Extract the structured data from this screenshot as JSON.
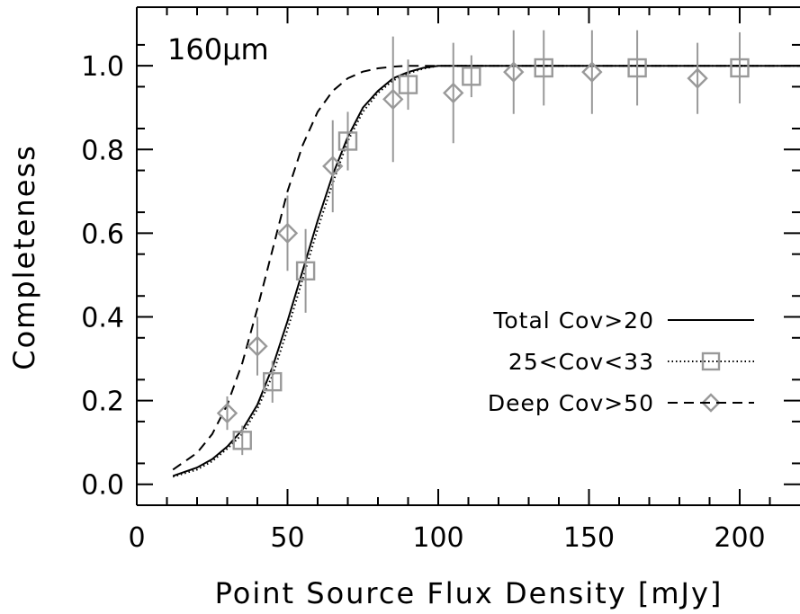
{
  "chart_data": {
    "type": "line",
    "annotation": "160μm",
    "xlabel": "Point Source Flux Density [mJy]",
    "ylabel": "Completeness",
    "xlim": [
      0,
      220
    ],
    "ylim": [
      -0.05,
      1.14
    ],
    "xticks": [
      0,
      50,
      100,
      150,
      200
    ],
    "yticks": [
      0.0,
      0.2,
      0.4,
      0.6,
      0.8,
      1.0
    ],
    "ytick_labels": [
      "0.0",
      "0.2",
      "0.4",
      "0.6",
      "0.8",
      "1.0"
    ],
    "legend_position": "middle-right",
    "colors": {
      "axes": "#000000",
      "markers": "#999999"
    },
    "series": [
      {
        "name": "Total Cov>20",
        "style": "solid",
        "marker": "none",
        "x": [
          12,
          20,
          25,
          30,
          35,
          40,
          45,
          50,
          55,
          60,
          65,
          70,
          75,
          80,
          85,
          90,
          95,
          100,
          110,
          120,
          150,
          200,
          220
        ],
        "y": [
          0.02,
          0.04,
          0.06,
          0.09,
          0.13,
          0.19,
          0.28,
          0.39,
          0.51,
          0.63,
          0.74,
          0.83,
          0.9,
          0.94,
          0.97,
          0.985,
          0.995,
          1.0,
          1.0,
          1.0,
          1.0,
          1.0,
          1.0
        ]
      },
      {
        "name": "25<Cov<33",
        "style": "dotted",
        "marker": "square",
        "x": [
          12,
          20,
          25,
          30,
          35,
          40,
          45,
          50,
          55,
          60,
          65,
          70,
          75,
          80,
          85,
          90,
          95,
          100,
          110,
          120,
          150,
          200,
          220
        ],
        "y": [
          0.018,
          0.035,
          0.055,
          0.085,
          0.12,
          0.18,
          0.26,
          0.37,
          0.49,
          0.61,
          0.72,
          0.82,
          0.89,
          0.935,
          0.965,
          0.982,
          0.993,
          1.0,
          1.0,
          1.0,
          1.0,
          1.0,
          1.0
        ],
        "points": [
          {
            "x": 35,
            "y": 0.105,
            "err": 0.035
          },
          {
            "x": 45,
            "y": 0.245,
            "err": 0.05
          },
          {
            "x": 56,
            "y": 0.51,
            "err": 0.1
          },
          {
            "x": 70,
            "y": 0.82,
            "err": 0.07
          },
          {
            "x": 90,
            "y": 0.955,
            "err": 0.06
          },
          {
            "x": 111,
            "y": 0.975,
            "err": 0.05
          },
          {
            "x": 135,
            "y": 0.995,
            "err": 0.09
          },
          {
            "x": 166,
            "y": 0.995,
            "err": 0.09
          },
          {
            "x": 200,
            "y": 0.995,
            "err": 0.085
          }
        ]
      },
      {
        "name": "Deep Cov>50",
        "style": "dashed",
        "marker": "diamond",
        "x": [
          12,
          20,
          25,
          30,
          35,
          40,
          45,
          50,
          55,
          60,
          65,
          70,
          75,
          80,
          85,
          90,
          95,
          100,
          220
        ],
        "y": [
          0.035,
          0.075,
          0.12,
          0.19,
          0.29,
          0.42,
          0.56,
          0.7,
          0.81,
          0.89,
          0.94,
          0.97,
          0.986,
          0.994,
          0.998,
          1.0,
          1.0,
          1.0,
          1.0
        ]
      }
    ],
    "diamond_points": [
      {
        "x": 30,
        "y": 0.17,
        "err": 0.04
      },
      {
        "x": 40,
        "y": 0.33,
        "err": 0.07
      },
      {
        "x": 50,
        "y": 0.6,
        "err": 0.09
      },
      {
        "x": 65,
        "y": 0.76,
        "err": 0.11
      },
      {
        "x": 85,
        "y": 0.92,
        "err": 0.15
      },
      {
        "x": 105,
        "y": 0.935,
        "err": 0.12
      },
      {
        "x": 125,
        "y": 0.985,
        "err": 0.1
      },
      {
        "x": 151,
        "y": 0.985,
        "err": 0.1
      },
      {
        "x": 186,
        "y": 0.97,
        "err": 0.085
      }
    ]
  }
}
